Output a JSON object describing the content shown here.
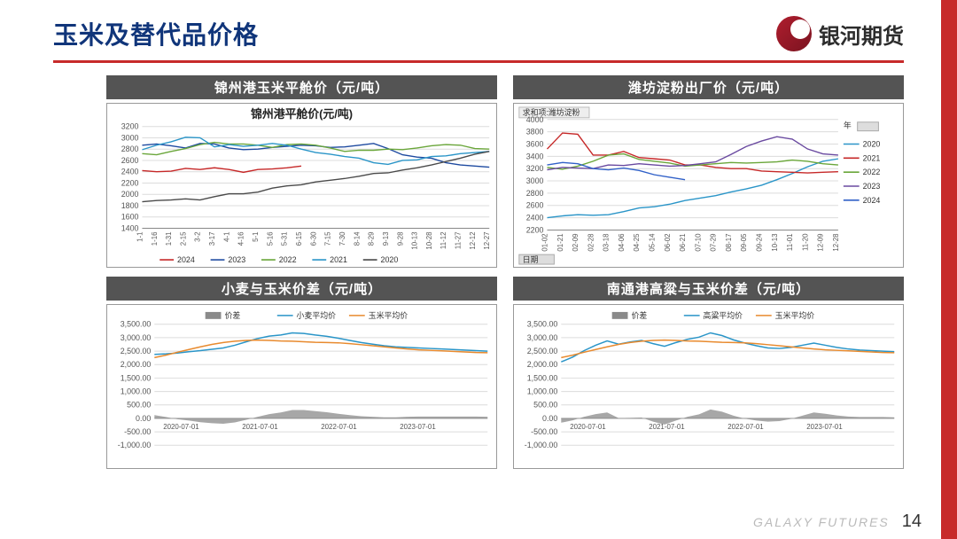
{
  "page": {
    "title": "玉米及替代品价格",
    "brand": "银河期货",
    "footer_brand": "GALAXY FUTURES",
    "page_number": "14",
    "colors": {
      "accent": "#c72a2a",
      "title_blue": "#10357a",
      "panel_bg": "#545454"
    }
  },
  "chart1": {
    "panel_title": "锦州港玉米平舱价（元/吨）",
    "subtitle": "锦州港平舱价(元/吨)",
    "type": "line",
    "ylim": [
      1400,
      3200
    ],
    "ytick_step": 200,
    "xlabels": [
      "1-1",
      "1-16",
      "1-31",
      "2-15",
      "3-2",
      "3-17",
      "4-1",
      "4-16",
      "5-1",
      "5-16",
      "5-31",
      "6-15",
      "6-30",
      "7-15",
      "7-30",
      "8-14",
      "8-29",
      "9-13",
      "9-28",
      "10-13",
      "10-28",
      "11-12",
      "11-27",
      "12-12",
      "12-27"
    ],
    "legend": [
      {
        "label": "2024",
        "color": "#c62828"
      },
      {
        "label": "2023",
        "color": "#1e4aa0"
      },
      {
        "label": "2022",
        "color": "#6aa63a"
      },
      {
        "label": "2021",
        "color": "#2a95c8"
      },
      {
        "label": "2020",
        "color": "#4a4a4a"
      }
    ],
    "series": {
      "2024": [
        2420,
        2400,
        2410,
        2460,
        2440,
        2470,
        2440,
        2390,
        2440,
        2450,
        2470,
        2500
      ],
      "2023": [
        2870,
        2890,
        2860,
        2820,
        2900,
        2890,
        2820,
        2790,
        2800,
        2830,
        2850,
        2870,
        2860,
        2830,
        2840,
        2870,
        2900,
        2810,
        2700,
        2660,
        2640,
        2560,
        2520,
        2500,
        2480
      ],
      "2022": [
        2720,
        2700,
        2760,
        2810,
        2880,
        2920,
        2890,
        2890,
        2870,
        2830,
        2880,
        2890,
        2870,
        2820,
        2760,
        2780,
        2780,
        2800,
        2790,
        2820,
        2860,
        2880,
        2870,
        2810,
        2800
      ],
      "2021": [
        2790,
        2870,
        2930,
        3010,
        3000,
        2840,
        2880,
        2850,
        2870,
        2900,
        2870,
        2800,
        2740,
        2710,
        2670,
        2640,
        2560,
        2530,
        2600,
        2610,
        2670,
        2680,
        2720,
        2740,
        2760
      ],
      "2020": [
        1870,
        1890,
        1900,
        1920,
        1900,
        1960,
        2010,
        2010,
        2040,
        2110,
        2150,
        2170,
        2220,
        2250,
        2280,
        2320,
        2370,
        2380,
        2430,
        2470,
        2520,
        2580,
        2640,
        2710,
        2760
      ]
    },
    "background_color": "#ffffff",
    "grid_color": "#dcdcdc",
    "line_width": 1.4,
    "font_size_axis": 9
  },
  "chart2": {
    "panel_title": "潍坊淀粉出厂价（元/吨）",
    "header_tag": "求和项:潍坊淀粉",
    "type": "line",
    "ylim": [
      2200,
      4000
    ],
    "ytick_step": 200,
    "xlabels": [
      "01-02",
      "01-21",
      "02-09",
      "02-28",
      "03-18",
      "04-06",
      "04-25",
      "05-14",
      "06-02",
      "06-21",
      "07-10",
      "07-29",
      "08-17",
      "09-05",
      "09-24",
      "10-13",
      "11-01",
      "11-20",
      "12-09",
      "12-28"
    ],
    "legend_label": "年",
    "legend": [
      {
        "label": "2020",
        "color": "#2a95c8"
      },
      {
        "label": "2021",
        "color": "#c62828"
      },
      {
        "label": "2022",
        "color": "#6aa63a"
      },
      {
        "label": "2023",
        "color": "#6a4aa0"
      },
      {
        "label": "2024",
        "color": "#3060c8"
      }
    ],
    "series": {
      "2020": [
        2400,
        2430,
        2450,
        2440,
        2450,
        2500,
        2560,
        2580,
        2620,
        2680,
        2720,
        2760,
        2820,
        2870,
        2930,
        3020,
        3120,
        3230,
        3320,
        3360
      ],
      "2021": [
        3520,
        3780,
        3760,
        3420,
        3420,
        3480,
        3380,
        3360,
        3340,
        3260,
        3260,
        3220,
        3200,
        3200,
        3160,
        3150,
        3140,
        3130,
        3140,
        3150
      ],
      "2022": [
        3220,
        3190,
        3240,
        3320,
        3420,
        3440,
        3350,
        3320,
        3290,
        3240,
        3260,
        3280,
        3300,
        3290,
        3300,
        3310,
        3340,
        3320,
        3280,
        3260
      ],
      "2023": [
        3180,
        3220,
        3210,
        3200,
        3260,
        3250,
        3280,
        3260,
        3240,
        3250,
        3280,
        3310,
        3430,
        3560,
        3650,
        3720,
        3680,
        3520,
        3440,
        3420
      ],
      "2024": [
        3260,
        3300,
        3280,
        3200,
        3180,
        3210,
        3170,
        3100,
        3060,
        3020
      ]
    },
    "date_footer": "日期",
    "background_color": "#ffffff",
    "grid_color": "#dcdcdc"
  },
  "chart3": {
    "panel_title": "小麦与玉米价差（元/吨）",
    "type": "line-with-area",
    "ylim": [
      -1000,
      3500
    ],
    "ytick_step": 500,
    "xlabels": [
      "2020-07-01",
      "2021-07-01",
      "2022-07-01",
      "2023-07-01"
    ],
    "legend": [
      {
        "label": "价差",
        "color": "#8a8a8a",
        "kind": "area"
      },
      {
        "label": "小麦平均价",
        "color": "#2a95c8",
        "kind": "line"
      },
      {
        "label": "玉米平均价",
        "color": "#e88a2e",
        "kind": "line"
      }
    ],
    "series": {
      "wheat": [
        2380,
        2400,
        2430,
        2480,
        2520,
        2570,
        2620,
        2720,
        2850,
        2970,
        3060,
        3100,
        3180,
        3160,
        3100,
        3050,
        2980,
        2900,
        2820,
        2760,
        2700,
        2660,
        2640,
        2620,
        2600,
        2580,
        2560,
        2540,
        2520,
        2500
      ],
      "corn": [
        2260,
        2350,
        2460,
        2560,
        2660,
        2750,
        2820,
        2870,
        2900,
        2910,
        2900,
        2880,
        2870,
        2850,
        2830,
        2820,
        2810,
        2780,
        2740,
        2700,
        2660,
        2620,
        2580,
        2550,
        2530,
        2510,
        2490,
        2470,
        2450,
        2440
      ],
      "diff": [
        120,
        50,
        -30,
        -80,
        -140,
        -180,
        -200,
        -150,
        -50,
        60,
        160,
        220,
        310,
        310,
        270,
        230,
        170,
        120,
        80,
        60,
        40,
        40,
        60,
        70,
        70,
        70,
        70,
        70,
        70,
        60
      ]
    },
    "background_color": "#ffffff",
    "grid_color": "#e5e5e5"
  },
  "chart4": {
    "panel_title": "南通港高粱与玉米价差（元/吨）",
    "type": "line-with-area",
    "ylim": [
      -1000,
      3500
    ],
    "ytick_step": 500,
    "xlabels": [
      "2020-07-01",
      "2021-07-01",
      "2022-07-01",
      "2023-07-01"
    ],
    "legend": [
      {
        "label": "价差",
        "color": "#8a8a8a",
        "kind": "area"
      },
      {
        "label": "高粱平均价",
        "color": "#2a95c8",
        "kind": "line"
      },
      {
        "label": "玉米平均价",
        "color": "#e88a2e",
        "kind": "line"
      }
    ],
    "series": {
      "sorghum": [
        2100,
        2280,
        2520,
        2720,
        2880,
        2760,
        2840,
        2900,
        2780,
        2680,
        2820,
        2940,
        3020,
        3180,
        3080,
        2920,
        2800,
        2700,
        2620,
        2600,
        2640,
        2720,
        2800,
        2720,
        2640,
        2580,
        2540,
        2520,
        2500,
        2480
      ],
      "corn": [
        2260,
        2350,
        2460,
        2560,
        2660,
        2750,
        2820,
        2870,
        2900,
        2910,
        2900,
        2880,
        2870,
        2850,
        2830,
        2820,
        2810,
        2780,
        2740,
        2700,
        2660,
        2620,
        2580,
        2550,
        2530,
        2510,
        2490,
        2470,
        2450,
        2440
      ],
      "diff": [
        -160,
        -70,
        60,
        160,
        220,
        10,
        20,
        30,
        -120,
        -230,
        -80,
        60,
        150,
        330,
        250,
        100,
        -10,
        -80,
        -120,
        -100,
        -20,
        100,
        220,
        170,
        110,
        70,
        50,
        50,
        50,
        40
      ]
    },
    "background_color": "#ffffff",
    "grid_color": "#e5e5e5"
  }
}
